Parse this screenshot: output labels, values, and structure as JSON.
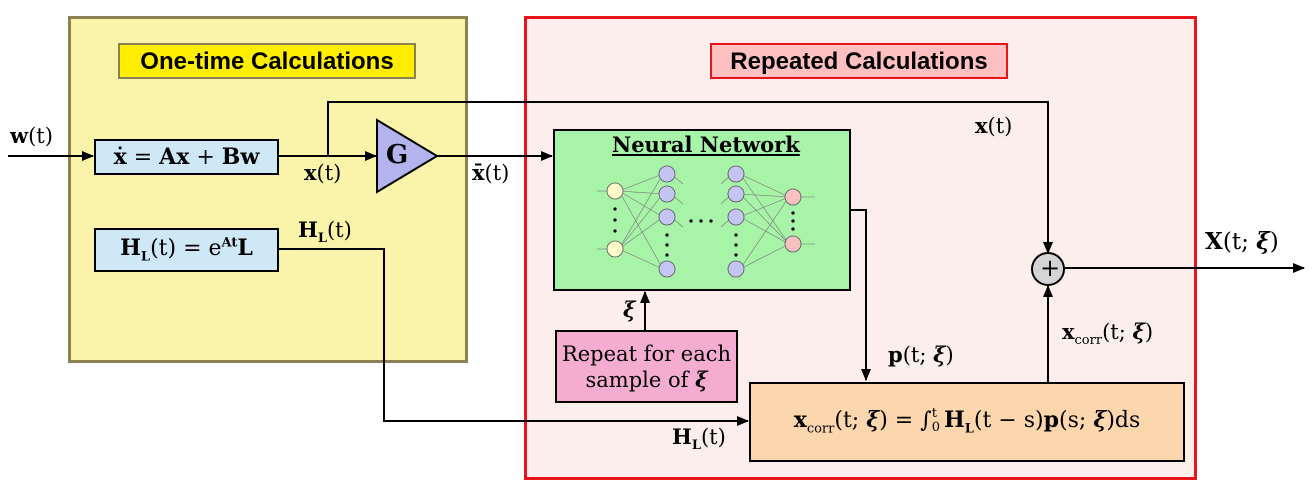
{
  "panels": {
    "one_time": {
      "title": "One-time Calculations",
      "fill": "#f9f4a9",
      "border": "#8b8253",
      "title_fill": "#ffee00"
    },
    "repeated": {
      "title": "Repeated Calculations",
      "fill": "#fdeeee",
      "border": "#e8141a",
      "title_fill": "#ffc0c2"
    }
  },
  "blocks": {
    "state_eq": {
      "lhs": "ẋ",
      "eq": " = ",
      "A": "A",
      "x": "x",
      "plus": " + ",
      "B": "B",
      "w": "w"
    },
    "gain": {
      "label": "G"
    },
    "h_eq": {
      "H": "H",
      "sub": "L",
      "arg": "(t) = e",
      "sup": "At",
      "L": "L"
    },
    "neural_net": {
      "title": "Neural Network"
    },
    "repeat_note": {
      "line1": "Repeat for each",
      "line2": "sample of",
      "xi": "ξ"
    },
    "integral": {
      "x": "x",
      "sub": "corr",
      "args": "(t; ",
      "xi": "ξ",
      "eq": ") = ∫",
      "lower": "0",
      "upper": "t",
      "H": "H",
      "Hsub": "L",
      "rest1": "(t − s)",
      "p": "p",
      "rest2": "(s; ",
      "xi2": "ξ",
      "rest3": ")ds"
    },
    "sum": {
      "symbol": "+"
    }
  },
  "signals": {
    "w_in": {
      "v": "w",
      "arg": "(t)"
    },
    "x_out": {
      "v": "x",
      "arg": "(t)"
    },
    "xbar": {
      "v": "x̄",
      "arg": "(t)"
    },
    "HL_out": {
      "v": "H",
      "sub": "L",
      "arg": "(t)"
    },
    "x_top": {
      "v": "x",
      "arg": "(t)"
    },
    "xi_in": {
      "v": "ξ"
    },
    "p": {
      "v": "p",
      "arg": "(t; ",
      "xi": "ξ",
      "end": ")"
    },
    "HL_in": {
      "v": "H",
      "sub": "L",
      "arg": "(t)"
    },
    "xcorr": {
      "v": "x",
      "sub": "corr",
      "arg": "(t; ",
      "xi": "ξ",
      "end": ")"
    },
    "X_out": {
      "v": "X",
      "arg": "(t; ",
      "xi": "ξ",
      "end": ")"
    }
  },
  "colors": {
    "eq_box": "#cfe8f6",
    "gain": "#b3b3ee",
    "nn_bg": "#a7f3a8",
    "repeat": "#f4acd0",
    "integral_box": "#fcd7ad",
    "sum": "#d4d4d4",
    "input_neuron": "#fffccb",
    "hidden_neuron": "#c5c5f3",
    "output_neuron": "#f7c1c1"
  }
}
